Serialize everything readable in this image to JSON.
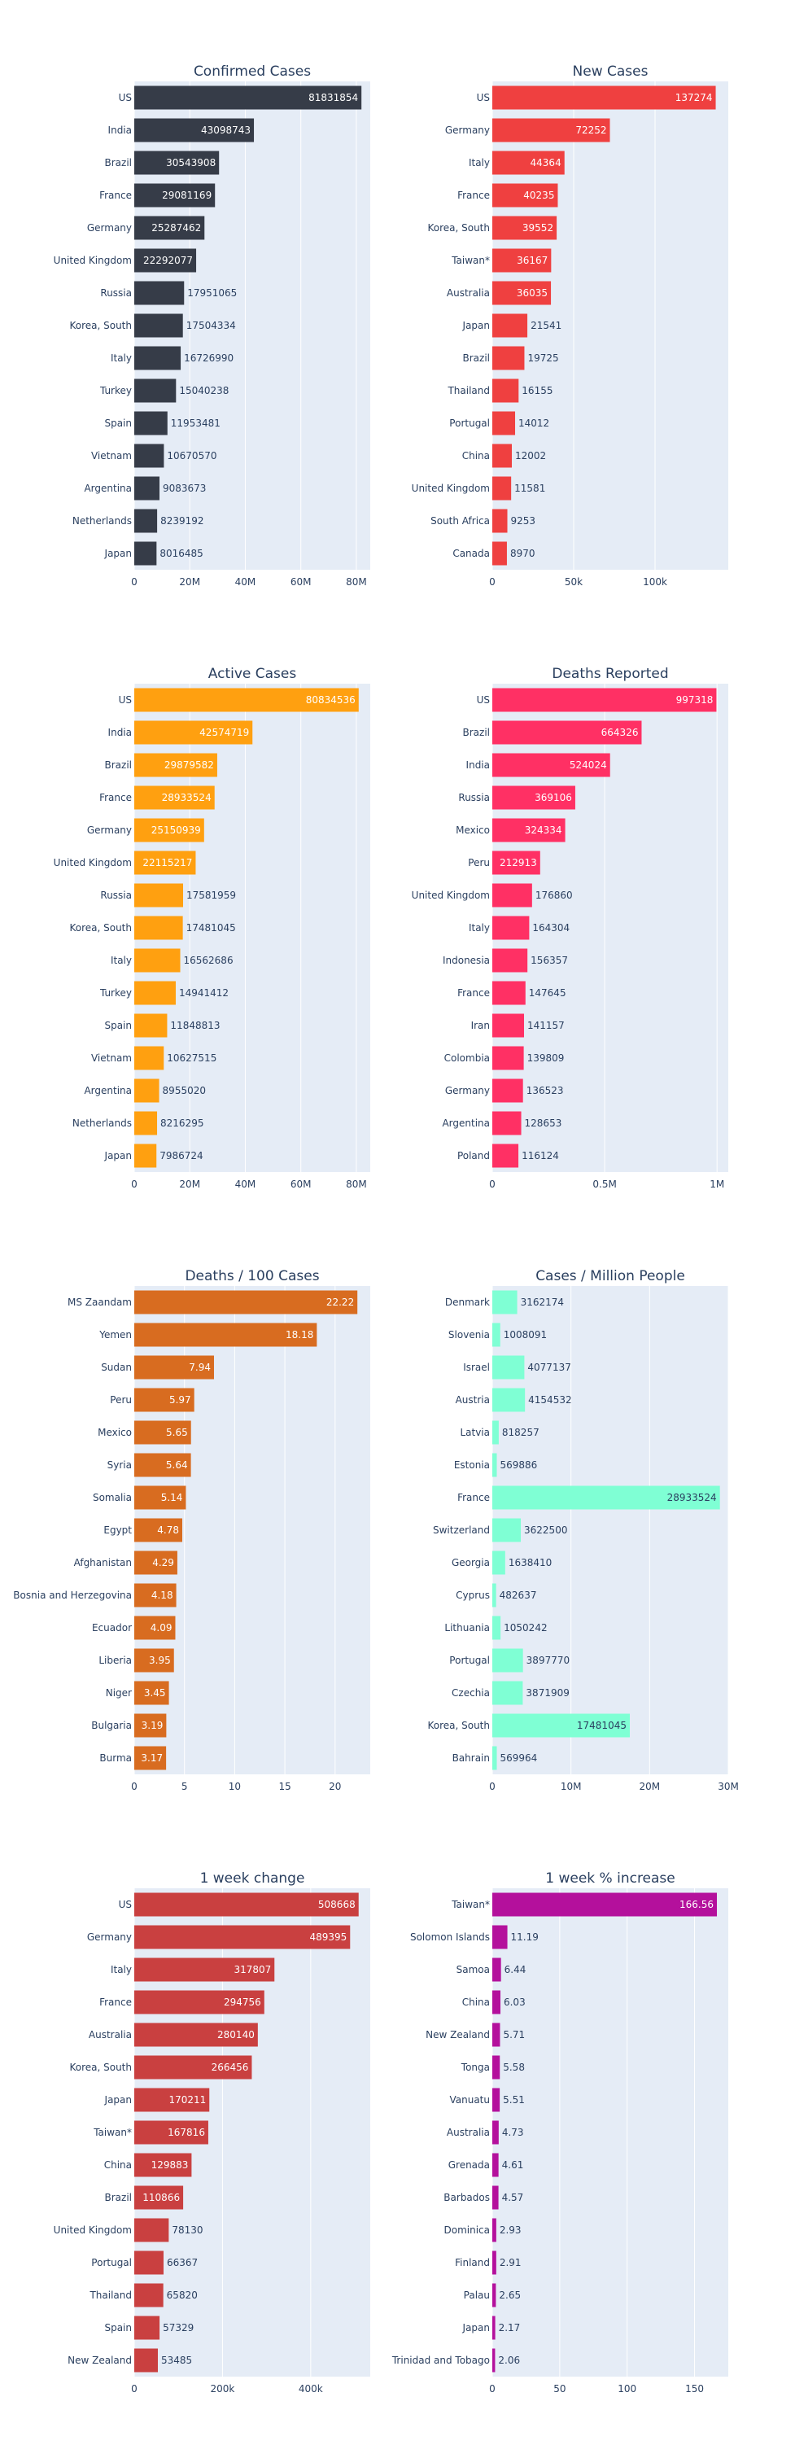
{
  "colors": {
    "background": "#ffffff",
    "plot_background": "#e5ecf6",
    "grid": "#ffffff",
    "text": "#2a3f5f"
  },
  "chart_data": [
    {
      "type": "bar",
      "orientation": "horizontal",
      "title": "Confirmed Cases",
      "color": "#363c48",
      "xlim": [
        0,
        85000000
      ],
      "ticks": [
        0,
        20000000,
        40000000,
        60000000,
        80000000
      ],
      "tick_labels": [
        "0",
        "20M",
        "40M",
        "60M",
        "80M"
      ],
      "categories": [
        "US",
        "India",
        "Brazil",
        "France",
        "Germany",
        "United Kingdom",
        "Russia",
        "Korea, South",
        "Italy",
        "Turkey",
        "Spain",
        "Vietnam",
        "Argentina",
        "Netherlands",
        "Japan"
      ],
      "values": [
        81831854,
        43098743,
        30543908,
        29081169,
        25287462,
        22292077,
        17951065,
        17504334,
        16726990,
        15040238,
        11953481,
        10670570,
        9083673,
        8239192,
        8016485
      ],
      "labels": [
        "81831854",
        "43098743",
        "30543908",
        "29081169",
        "25287462",
        "22292077",
        "17951065",
        "17504334",
        "16726990",
        "15040238",
        "11953481",
        "10670570",
        "9083673",
        "8239192",
        "8016485"
      ]
    },
    {
      "type": "bar",
      "orientation": "horizontal",
      "title": "New Cases",
      "color": "#ef4040",
      "xlim": [
        0,
        145000
      ],
      "ticks": [
        0,
        50000,
        100000
      ],
      "tick_labels": [
        "0",
        "50k",
        "100k"
      ],
      "categories": [
        "US",
        "Germany",
        "Italy",
        "France",
        "Korea, South",
        "Taiwan*",
        "Australia",
        "Japan",
        "Brazil",
        "Thailand",
        "Portugal",
        "China",
        "United Kingdom",
        "South Africa",
        "Canada"
      ],
      "values": [
        137274,
        72252,
        44364,
        40235,
        39552,
        36167,
        36035,
        21541,
        19725,
        16155,
        14012,
        12002,
        11581,
        9253,
        8970
      ],
      "labels": [
        "137274",
        "72252",
        "44364",
        "40235",
        "39552",
        "36167",
        "36035",
        "21541",
        "19725",
        "16155",
        "14012",
        "12002",
        "11581",
        "9253",
        "8970"
      ]
    },
    {
      "type": "bar",
      "orientation": "horizontal",
      "title": "Active Cases",
      "color": "#ffa010",
      "xlim": [
        0,
        85000000
      ],
      "ticks": [
        0,
        20000000,
        40000000,
        60000000,
        80000000
      ],
      "tick_labels": [
        "0",
        "20M",
        "40M",
        "60M",
        "80M"
      ],
      "categories": [
        "US",
        "India",
        "Brazil",
        "France",
        "Germany",
        "United Kingdom",
        "Russia",
        "Korea, South",
        "Italy",
        "Turkey",
        "Spain",
        "Vietnam",
        "Argentina",
        "Netherlands",
        "Japan"
      ],
      "values": [
        80834536,
        42574719,
        29879582,
        28933524,
        25150939,
        22115217,
        17581959,
        17481045,
        16562686,
        14941412,
        11848813,
        10627515,
        8955020,
        8216295,
        7986724
      ],
      "labels": [
        "80834536",
        "42574719",
        "29879582",
        "28933524",
        "25150939",
        "22115217",
        "17581959",
        "17481045",
        "16562686",
        "14941412",
        "11848813",
        "10627515",
        "8955020",
        "8216295",
        "7986724"
      ]
    },
    {
      "type": "bar",
      "orientation": "horizontal",
      "title": "Deaths Reported",
      "color": "#ff3064",
      "xlim": [
        0,
        1050000
      ],
      "ticks": [
        0,
        500000,
        1000000
      ],
      "tick_labels": [
        "0",
        "0.5M",
        "1M"
      ],
      "categories": [
        "US",
        "Brazil",
        "India",
        "Russia",
        "Mexico",
        "Peru",
        "United Kingdom",
        "Italy",
        "Indonesia",
        "France",
        "Iran",
        "Colombia",
        "Germany",
        "Argentina",
        "Poland"
      ],
      "values": [
        997318,
        664326,
        524024,
        369106,
        324334,
        212913,
        176860,
        164304,
        156357,
        147645,
        141157,
        139809,
        136523,
        128653,
        116124
      ],
      "labels": [
        "997318",
        "664326",
        "524024",
        "369106",
        "324334",
        "212913",
        "176860",
        "164304",
        "156357",
        "147645",
        "141157",
        "139809",
        "136523",
        "128653",
        "116124"
      ]
    },
    {
      "type": "bar",
      "orientation": "horizontal",
      "title": "Deaths / 100 Cases",
      "color": "#d86c20",
      "xlim": [
        0,
        23.5
      ],
      "ticks": [
        0,
        5,
        10,
        15,
        20
      ],
      "tick_labels": [
        "0",
        "5",
        "10",
        "15",
        "20"
      ],
      "categories": [
        "MS Zaandam",
        "Yemen",
        "Sudan",
        "Peru",
        "Mexico",
        "Syria",
        "Somalia",
        "Egypt",
        "Afghanistan",
        "Bosnia and Herzegovina",
        "Ecuador",
        "Liberia",
        "Niger",
        "Bulgaria",
        "Burma"
      ],
      "values": [
        22.22,
        18.18,
        7.94,
        5.97,
        5.65,
        5.64,
        5.14,
        4.78,
        4.29,
        4.18,
        4.09,
        3.95,
        3.45,
        3.19,
        3.17
      ],
      "labels": [
        "22.22",
        "18.18",
        "7.94",
        "5.97",
        "5.65",
        "5.64",
        "5.14",
        "4.78",
        "4.29",
        "4.18",
        "4.09",
        "3.95",
        "3.45",
        "3.19",
        "3.17"
      ]
    },
    {
      "type": "bar",
      "orientation": "horizontal",
      "title": "Cases / Million People",
      "color": "#7fffd4",
      "xlim": [
        0,
        30000000
      ],
      "ticks": [
        0,
        10000000,
        20000000,
        30000000
      ],
      "tick_labels": [
        "0",
        "10M",
        "20M",
        "30M"
      ],
      "categories": [
        "Denmark",
        "Slovenia",
        "Israel",
        "Austria",
        "Latvia",
        "Estonia",
        "France",
        "Switzerland",
        "Georgia",
        "Cyprus",
        "Lithuania",
        "Portugal",
        "Czechia",
        "Korea, South",
        "Bahrain"
      ],
      "values": [
        3162174,
        1008091,
        4077137,
        4154532,
        818257,
        569886,
        28933524,
        3622500,
        1638410,
        482637,
        1050242,
        3897770,
        3871909,
        17481045,
        569964
      ],
      "labels": [
        "3162174",
        "1008091",
        "4077137",
        "4154532",
        "818257",
        "569886",
        "28933524",
        "3622500",
        "1638410",
        "482637",
        "1050242",
        "3897770",
        "3871909",
        "17481045",
        "569964"
      ]
    },
    {
      "type": "bar",
      "orientation": "horizontal",
      "title": "1 week change",
      "color": "#c94040",
      "xlim": [
        0,
        535000
      ],
      "ticks": [
        0,
        200000,
        400000
      ],
      "tick_labels": [
        "0",
        "200k",
        "400k"
      ],
      "categories": [
        "US",
        "Germany",
        "Italy",
        "France",
        "Australia",
        "Korea, South",
        "Japan",
        "Taiwan*",
        "China",
        "Brazil",
        "United Kingdom",
        "Portugal",
        "Thailand",
        "Spain",
        "New Zealand"
      ],
      "values": [
        508668,
        489395,
        317807,
        294756,
        280140,
        266456,
        170211,
        167816,
        129883,
        110866,
        78130,
        66367,
        65820,
        57329,
        53485
      ],
      "labels": [
        "508668",
        "489395",
        "317807",
        "294756",
        "280140",
        "266456",
        "170211",
        "167816",
        "129883",
        "110866",
        "78130",
        "66367",
        "65820",
        "57329",
        "53485"
      ]
    },
    {
      "type": "bar",
      "orientation": "horizontal",
      "title": "1 week % increase",
      "color": "#b4109c",
      "xlim": [
        0,
        175
      ],
      "ticks": [
        0,
        50,
        100,
        150
      ],
      "tick_labels": [
        "0",
        "50",
        "100",
        "150"
      ],
      "categories": [
        "Taiwan*",
        "Solomon Islands",
        "Samoa",
        "China",
        "New Zealand",
        "Tonga",
        "Vanuatu",
        "Australia",
        "Grenada",
        "Barbados",
        "Dominica",
        "Finland",
        "Palau",
        "Japan",
        "Trinidad and Tobago"
      ],
      "values": [
        166.56,
        11.19,
        6.44,
        6.03,
        5.71,
        5.58,
        5.51,
        4.73,
        4.61,
        4.57,
        2.93,
        2.91,
        2.65,
        2.17,
        2.06
      ],
      "labels": [
        "166.56",
        "11.19",
        "6.44",
        "6.03",
        "5.71",
        "5.58",
        "5.51",
        "4.73",
        "4.61",
        "4.57",
        "2.93",
        "2.91",
        "2.65",
        "2.17",
        "2.06"
      ]
    }
  ]
}
